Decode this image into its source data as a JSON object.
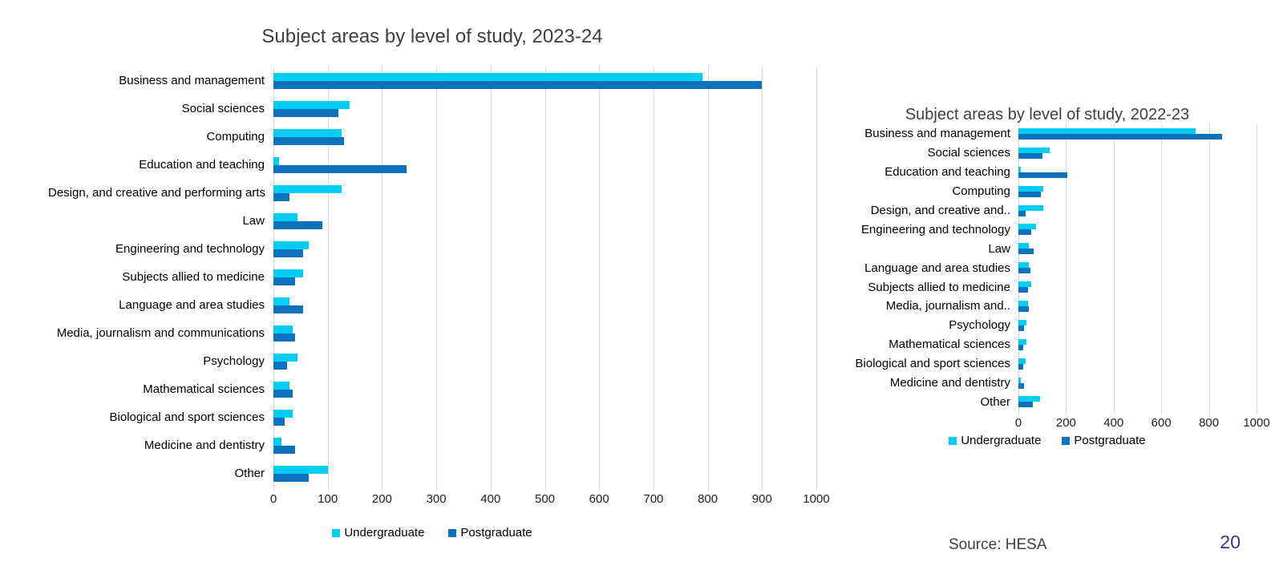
{
  "page": {
    "source_label": "Source: HESA",
    "page_number": "20"
  },
  "chart_data": [
    {
      "type": "bar",
      "orientation": "horizontal",
      "title": "Subject areas by level of study, 2023-24",
      "categories": [
        "Business and management",
        "Social sciences",
        "Computing",
        "Education and teaching",
        "Design, and creative and performing arts",
        "Law",
        "Engineering and technology",
        "Subjects allied to medicine",
        "Language and area studies",
        "Media, journalism and communications",
        "Psychology",
        "Mathematical sciences",
        "Biological and sport sciences",
        "Medicine and dentistry",
        "Other"
      ],
      "series": [
        {
          "name": "Undergraduate",
          "color": "#00cdf2",
          "values": [
            790,
            140,
            125,
            10,
            125,
            45,
            65,
            55,
            30,
            35,
            45,
            30,
            35,
            15,
            100
          ]
        },
        {
          "name": "Postgraduate",
          "color": "#0c72be",
          "values": [
            900,
            120,
            130,
            245,
            30,
            90,
            55,
            40,
            55,
            40,
            25,
            35,
            20,
            40,
            65
          ]
        }
      ],
      "xlim": [
        0,
        1000
      ],
      "xticks": [
        0,
        100,
        200,
        300,
        400,
        500,
        600,
        700,
        800,
        900,
        1000
      ],
      "grid": "vertical",
      "legend_position": "bottom"
    },
    {
      "type": "bar",
      "orientation": "horizontal",
      "title": "Subject areas by level of study, 2022-23",
      "categories": [
        "Business and management",
        "Social sciences",
        "Education and teaching",
        "Computing",
        "Design, and creative and..",
        "Engineering and technology",
        "Law",
        "Language and area studies",
        "Subjects allied to medicine",
        "Media, journalism and..",
        "Psychology",
        "Mathematical sciences",
        "Biological and sport sciences",
        "Medicine and dentistry",
        "Other"
      ],
      "series": [
        {
          "name": "Undergraduate",
          "color": "#00cdf2",
          "values": [
            745,
            130,
            10,
            105,
            105,
            75,
            45,
            45,
            55,
            40,
            35,
            35,
            30,
            10,
            90
          ]
        },
        {
          "name": "Postgraduate",
          "color": "#0c72be",
          "values": [
            855,
            100,
            205,
            95,
            30,
            55,
            65,
            50,
            40,
            45,
            25,
            20,
            20,
            25,
            60
          ]
        }
      ],
      "xlim": [
        0,
        1000
      ],
      "xticks": [
        0,
        200,
        400,
        600,
        800,
        1000
      ],
      "grid": "vertical",
      "legend_position": "bottom"
    }
  ]
}
